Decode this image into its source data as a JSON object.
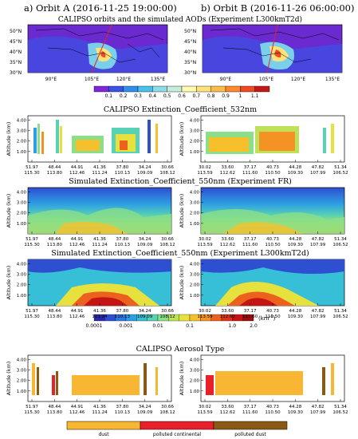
{
  "orbit_titles": [
    "a) Orbit A (2016-11-25 19:00:00)",
    "b) Orbit B (2016-11-26 06:00:00)"
  ],
  "panel_titles": {
    "map": "CALIPSO orbits and the simulated AODs (Experiment L300kmT2d)",
    "calipso_ext": "CALIPSO Extinction_Coefficient_532nm",
    "sim_fr": "Simulated Extinction_Coefficient_550nm (Experiment FR)",
    "sim_l300": "Simulated Extinction_Coefficient_550nm (Experiment L300kmT2d)",
    "aerosol_type": "CALIPSO Aerosol Type"
  },
  "map": {
    "lat_labels": [
      "50°N",
      "45°N",
      "40°N",
      "35°N",
      "30°N"
    ],
    "lon_labels": [
      "90°E",
      "105°E",
      "120°E",
      "135°E"
    ],
    "aod_colorbar": {
      "labels": [
        "0.1",
        "0.2",
        "0.3",
        "0.4",
        "0.5",
        "0.6",
        "0.7",
        "0.8",
        "0.9",
        "1",
        "1.1"
      ],
      "colors": [
        "#7d25d9",
        "#3a52e6",
        "#2f8fea",
        "#49c1ee",
        "#8fdbe9",
        "#c9ecd9",
        "#fffbb0",
        "#ffe27a",
        "#ffbc4a",
        "#ff8a2e",
        "#f04a22",
        "#c41818"
      ]
    }
  },
  "altitude_axis": {
    "ylabel": "Altitude (km)",
    "ticks": [
      "4.00",
      "3.00",
      "2.00",
      "1.00"
    ]
  },
  "x_axis": {
    "orbit_a_lat": [
      "51.97",
      "48.44",
      "44.91",
      "41.36",
      "37.80",
      "34.24",
      "30.66"
    ],
    "orbit_a_lon": [
      "115.30",
      "113.80",
      "112.46",
      "111.24",
      "110.13",
      "109.09",
      "108.12"
    ],
    "orbit_b_lat": [
      "30.02",
      "33.60",
      "37.17",
      "40.73",
      "44.28",
      "47.82",
      "51.34"
    ],
    "orbit_b_lon": [
      "113.59",
      "112.62",
      "111.60",
      "110.50",
      "109.30",
      "107.99",
      "106.52"
    ]
  },
  "ext_colorbar": {
    "labels": [
      "0.0001",
      "0.001",
      "0.01",
      "0.1",
      "1.0",
      "2.0"
    ],
    "unit": "(km",
    "unit_exp": "-1",
    "unit_close": ")",
    "colors": [
      "#2a2aa8",
      "#2e4fd0",
      "#2f78e4",
      "#2d9ee4",
      "#36bfd6",
      "#58d2b4",
      "#8adf88",
      "#bde25a",
      "#e6e13c",
      "#f6c02c",
      "#f49324",
      "#ec611e",
      "#de3518",
      "#c41414",
      "#9e0c0c"
    ]
  },
  "aerosol_legend": [
    {
      "label": "dust",
      "color": "#f7b733"
    },
    {
      "label": "polluted continental",
      "color": "#e8202a"
    },
    {
      "label": "polluted dust",
      "color": "#8a5a14"
    }
  ],
  "chart_data": {
    "type": "heatmap",
    "panels": [
      {
        "name": "CALIPSO Extinction_Coefficient_532nm",
        "y_range_km": [
          0,
          4
        ]
      },
      {
        "name": "Simulated Extinction_Coefficient_550nm (Experiment FR)",
        "y_range_km": [
          0,
          4
        ]
      },
      {
        "name": "Simulated Extinction_Coefficient_550nm (Experiment L300kmT2d)",
        "y_range_km": [
          0,
          4
        ]
      },
      {
        "name": "CALIPSO Aerosol Type",
        "y_range_km": [
          0,
          4
        ]
      }
    ]
  }
}
